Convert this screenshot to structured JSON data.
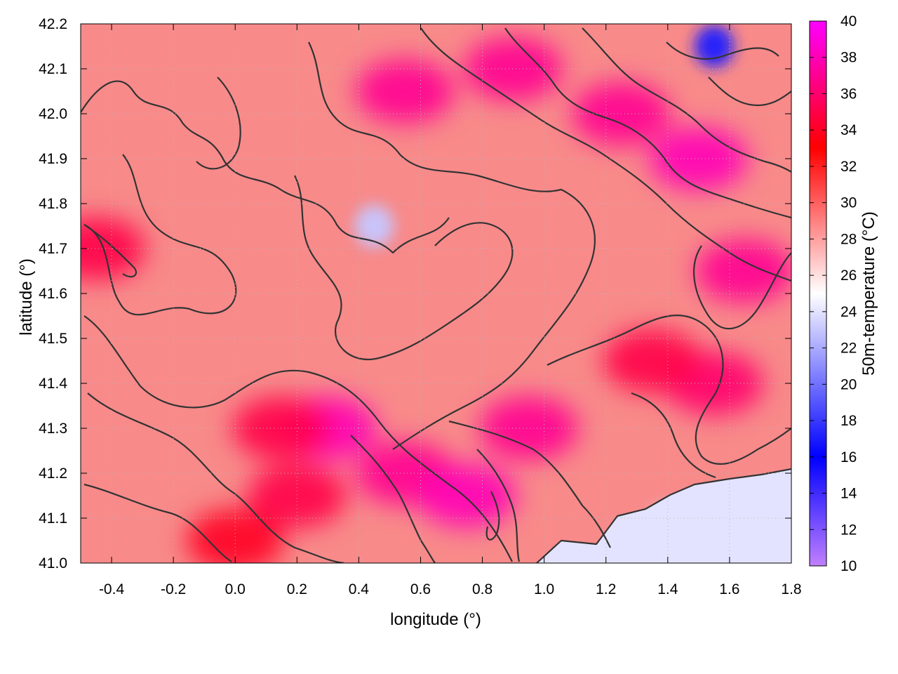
{
  "chart_data": {
    "type": "heatmap",
    "title": "",
    "xlabel": "longitude (°)",
    "ylabel": "latitude (°)",
    "colorbar_label": "50m-temperature (°C)",
    "xlim": [
      -0.5,
      1.8
    ],
    "ylim": [
      41.0,
      42.2
    ],
    "x_ticks": [
      -0.4,
      -0.2,
      0.0,
      0.2,
      0.4,
      0.6,
      0.8,
      1.0,
      1.2,
      1.4,
      1.6,
      1.8
    ],
    "x_tick_labels": [
      "-0.4",
      "-0.2",
      "0.0",
      "0.2",
      "0.4",
      "0.6",
      "0.8",
      "1.0",
      "1.2",
      "1.4",
      "1.6",
      "1.8"
    ],
    "y_ticks": [
      41.0,
      41.1,
      41.2,
      41.3,
      41.4,
      41.5,
      41.6,
      41.7,
      41.8,
      41.9,
      42.0,
      42.1,
      42.2
    ],
    "y_tick_labels": [
      "41.0",
      "41.1",
      "41.2",
      "41.3",
      "41.4",
      "41.5",
      "41.6",
      "41.7",
      "41.8",
      "41.9",
      "42.0",
      "42.1",
      "42.2"
    ],
    "colorbar_range": [
      10,
      40
    ],
    "colorbar_ticks": [
      10,
      12,
      14,
      16,
      18,
      20,
      22,
      24,
      26,
      28,
      30,
      32,
      34,
      36,
      38,
      40
    ],
    "colorbar_tick_labels": [
      "10",
      "12",
      "14",
      "16",
      "18",
      "20",
      "22",
      "24",
      "26",
      "28",
      "30",
      "32",
      "34",
      "36",
      "38",
      "40"
    ],
    "colormap": [
      {
        "value": 10,
        "color": "#c080ff"
      },
      {
        "value": 16,
        "color": "#0000ff"
      },
      {
        "value": 25,
        "color": "#ffffff"
      },
      {
        "value": 33,
        "color": "#ff0000"
      },
      {
        "value": 40,
        "color": "#ff00ff"
      }
    ],
    "grid": true,
    "contour_color": "#333333",
    "hot_spots": [
      {
        "lon": 0.3,
        "lat": 41.3,
        "temp": 38
      },
      {
        "lon": 0.15,
        "lat": 41.3,
        "temp": 35
      },
      {
        "lon": 0.55,
        "lat": 41.2,
        "temp": 37
      },
      {
        "lon": 0.75,
        "lat": 41.15,
        "temp": 38
      },
      {
        "lon": 0.95,
        "lat": 41.3,
        "temp": 37
      },
      {
        "lon": 0.55,
        "lat": 42.05,
        "temp": 37
      },
      {
        "lon": 0.9,
        "lat": 42.1,
        "temp": 37
      },
      {
        "lon": 1.25,
        "lat": 42.0,
        "temp": 37
      },
      {
        "lon": 1.5,
        "lat": 41.9,
        "temp": 38
      },
      {
        "lon": 1.65,
        "lat": 41.65,
        "temp": 37
      },
      {
        "lon": 1.55,
        "lat": 41.4,
        "temp": 36
      },
      {
        "lon": 1.35,
        "lat": 41.45,
        "temp": 35
      },
      {
        "lon": -0.45,
        "lat": 41.7,
        "temp": 35
      },
      {
        "lon": 0.2,
        "lat": 41.15,
        "temp": 35
      },
      {
        "lon": 0.0,
        "lat": 41.05,
        "temp": 34
      }
    ],
    "cool_spots": [
      {
        "lon": 0.45,
        "lat": 41.75,
        "temp": 23
      },
      {
        "lon": 1.55,
        "lat": 42.15,
        "temp": 17
      },
      {
        "lon": 1.4,
        "lat": 41.08,
        "temp": 24
      },
      {
        "lon": 1.7,
        "lat": 41.1,
        "temp": 24
      }
    ],
    "sea_region": {
      "temp": 24
    }
  }
}
